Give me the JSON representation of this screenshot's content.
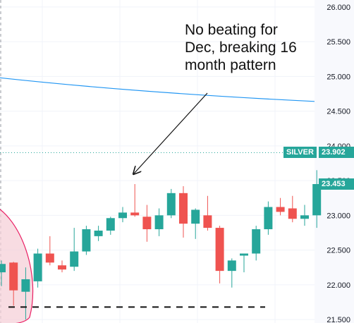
{
  "colors": {
    "up": "#26a69a",
    "down": "#ef5350",
    "ma_line": "#2196f3",
    "grid": "#f0f3fa",
    "axis_bg": "#f8f9fd",
    "tick_text": "#131722",
    "price_tag": "#26a69a",
    "pattern_fill": "#f5d0d8",
    "pattern_stroke": "#e91e63"
  },
  "annotation_lines": [
    "No beating for",
    "Dec, breaking 16",
    "month pattern"
  ],
  "chart_data": {
    "type": "candlestick",
    "y_axis_side": "right",
    "ylim": [
      21.45,
      26.1
    ],
    "yticks": [
      "21.500",
      "22.000",
      "22.500",
      "23.000",
      "23.500",
      "24.000",
      "24.500",
      "25.000",
      "25.500",
      "26.000"
    ],
    "grid": true,
    "candles": [
      {
        "o": 22.18,
        "h": 22.35,
        "l": 21.98,
        "c": 22.3
      },
      {
        "o": 22.32,
        "h": 22.33,
        "l": 21.7,
        "c": 21.92
      },
      {
        "o": 21.9,
        "h": 22.25,
        "l": 21.5,
        "c": 22.08
      },
      {
        "o": 22.05,
        "h": 22.52,
        "l": 21.96,
        "c": 22.45
      },
      {
        "o": 22.45,
        "h": 22.7,
        "l": 22.28,
        "c": 22.32
      },
      {
        "o": 22.28,
        "h": 22.35,
        "l": 22.18,
        "c": 22.22
      },
      {
        "o": 22.26,
        "h": 22.82,
        "l": 22.2,
        "c": 22.48
      },
      {
        "o": 22.48,
        "h": 22.85,
        "l": 22.43,
        "c": 22.8
      },
      {
        "o": 22.7,
        "h": 22.85,
        "l": 22.63,
        "c": 22.78
      },
      {
        "o": 22.78,
        "h": 22.98,
        "l": 22.72,
        "c": 22.96
      },
      {
        "o": 22.96,
        "h": 23.12,
        "l": 22.9,
        "c": 23.04
      },
      {
        "o": 23.04,
        "h": 23.45,
        "l": 22.98,
        "c": 23.0
      },
      {
        "o": 22.98,
        "h": 23.15,
        "l": 22.62,
        "c": 22.8
      },
      {
        "o": 22.8,
        "h": 23.1,
        "l": 22.7,
        "c": 23.0
      },
      {
        "o": 23.0,
        "h": 23.38,
        "l": 22.96,
        "c": 23.32
      },
      {
        "o": 23.32,
        "h": 23.42,
        "l": 22.68,
        "c": 22.88
      },
      {
        "o": 22.88,
        "h": 23.1,
        "l": 22.66,
        "c": 23.08
      },
      {
        "o": 23.0,
        "h": 23.28,
        "l": 22.78,
        "c": 22.82
      },
      {
        "o": 22.82,
        "h": 22.85,
        "l": 22.02,
        "c": 22.2
      },
      {
        "o": 22.2,
        "h": 22.38,
        "l": 21.96,
        "c": 22.35
      },
      {
        "o": 22.42,
        "h": 22.45,
        "l": 22.18,
        "c": 22.45
      },
      {
        "o": 22.45,
        "h": 22.85,
        "l": 22.35,
        "c": 22.8
      },
      {
        "o": 22.8,
        "h": 23.2,
        "l": 22.72,
        "c": 23.12
      },
      {
        "o": 23.12,
        "h": 23.25,
        "l": 23.0,
        "c": 23.05
      },
      {
        "o": 23.1,
        "h": 23.28,
        "l": 22.9,
        "c": 22.95
      },
      {
        "o": 22.95,
        "h": 23.15,
        "l": 22.85,
        "c": 23.0
      },
      {
        "o": 23.0,
        "h": 23.65,
        "l": 22.82,
        "c": 23.45
      }
    ],
    "moving_average": [
      24.98,
      24.78,
      24.64
    ],
    "price_tags": [
      {
        "label": "SILVER",
        "value": "23.902"
      },
      {
        "label": "",
        "value": "23.453"
      }
    ],
    "silver_level": 23.902,
    "dashed_level": 21.68
  }
}
